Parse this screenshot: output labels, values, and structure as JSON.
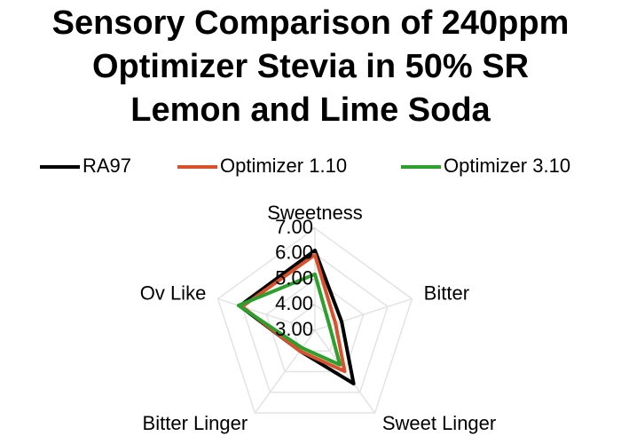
{
  "chart_data": {
    "type": "radar",
    "title": [
      "Sensory Comparison of 240ppm",
      "Optimizer Stevia in 50% SR",
      "Lemon and Lime Soda"
    ],
    "categories": [
      "Sweetness",
      "Bitter",
      "Sweet Linger",
      "Bitter Linger",
      "Ov Like"
    ],
    "series": [
      {
        "name": "RA97",
        "color": "#000000",
        "values": [
          6.13,
          4.1,
          5.58,
          4.0,
          6.1
        ]
      },
      {
        "name": "Optimizer 1.10",
        "color": "#d9512c",
        "values": [
          5.96,
          3.85,
          4.98,
          4.0,
          6.0
        ]
      },
      {
        "name": "Optimizer 3.10",
        "color": "#2ca02c",
        "values": [
          5.2,
          3.6,
          4.67,
          3.85,
          6.15
        ]
      }
    ],
    "ylim": [
      3,
      7
    ],
    "yticks": [
      {
        "value": 3,
        "label": "3.00"
      },
      {
        "value": 4,
        "label": "4.00"
      },
      {
        "value": 5,
        "label": "5.00"
      },
      {
        "value": 6,
        "label": "6.00"
      },
      {
        "value": 7,
        "label": "7.00"
      }
    ],
    "grid": true
  }
}
